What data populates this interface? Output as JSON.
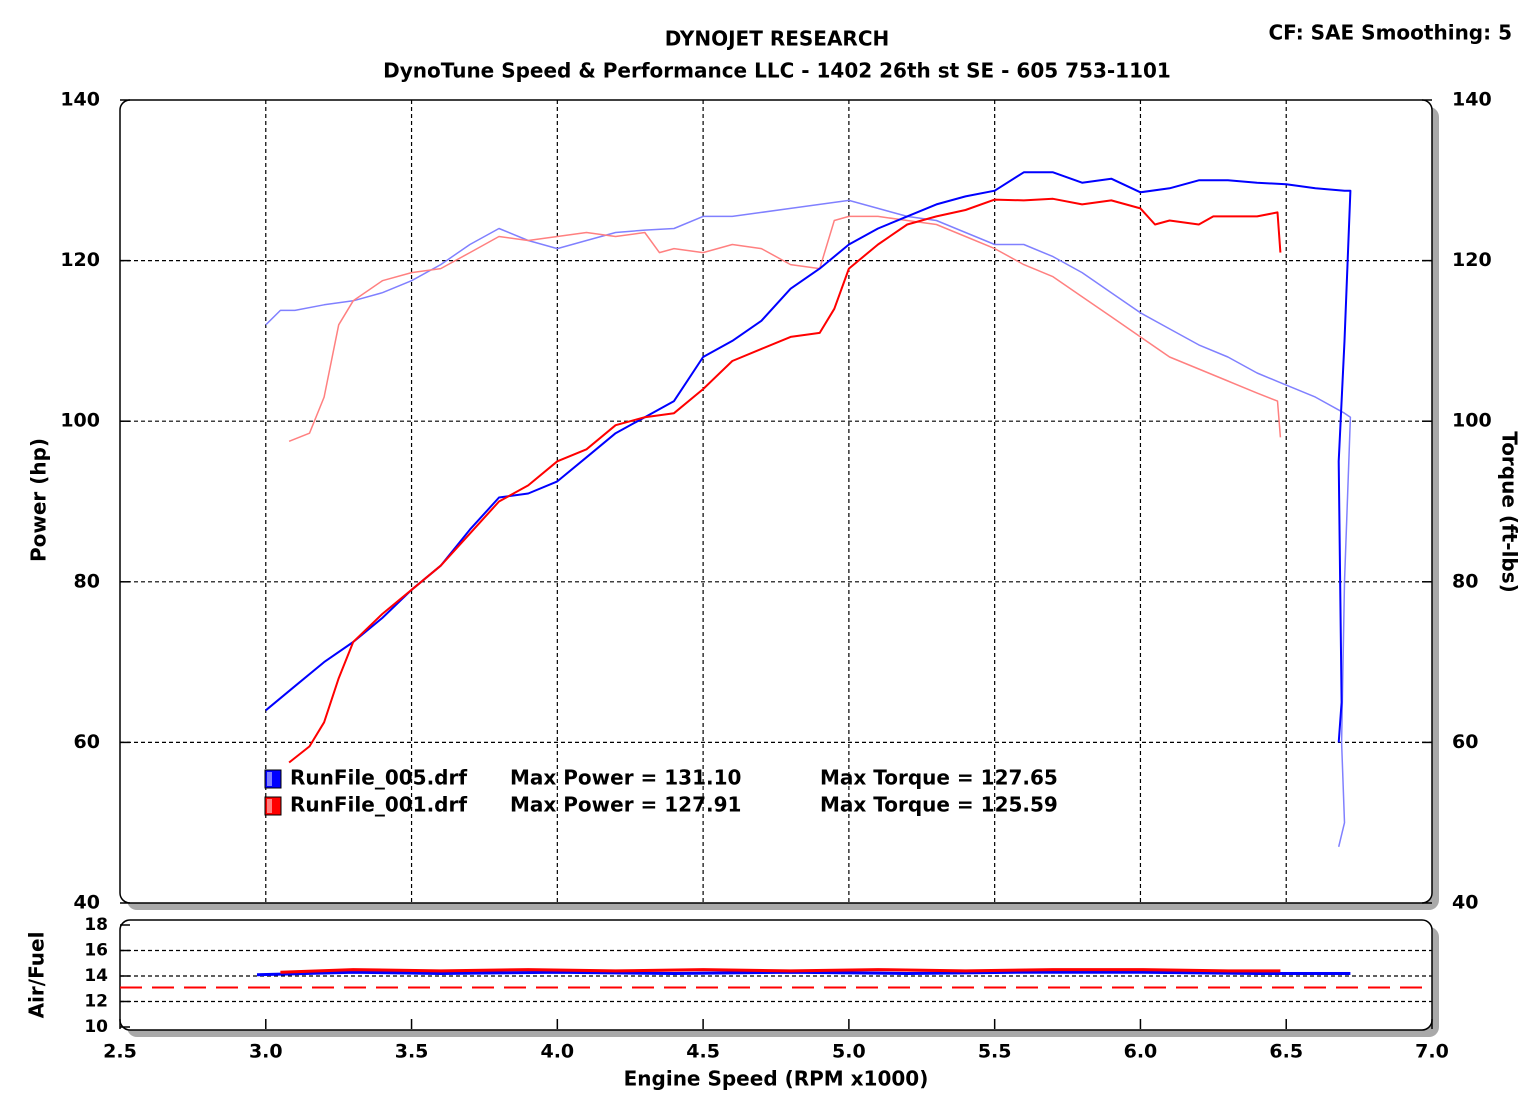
{
  "chart_data": [
    {
      "type": "line",
      "title": "DYNOJET RESEARCH",
      "subtitle": "DynoTune Speed & Performance LLC - 1402 26th st SE - 605 753-1101",
      "note": "CF: SAE  Smoothing: 5",
      "ylabel": "Power (hp)",
      "y2label": "Torque (ft-lbs)",
      "xlim": [
        2.5,
        7.0
      ],
      "xticks": [
        {
          "value": 3.0,
          "label": "3.0"
        },
        3.5,
        {
          "value": 4.0,
          "label": "4.0"
        },
        4.5,
        {
          "value": 5.0,
          "label": "5.0"
        },
        5.5,
        {
          "value": 6.0,
          "label": "6.0"
        },
        6.5
      ],
      "ylim": [
        40,
        140
      ],
      "yticks": [
        40,
        60,
        80,
        100,
        120,
        140
      ],
      "y2lim": [
        40,
        140
      ],
      "y2ticks": [
        40,
        60,
        80,
        100,
        120,
        140
      ],
      "grid": true,
      "legend": [
        {
          "file": "RunFile_005.drf",
          "color": "#0000ff",
          "power": "Max Power = 131.10",
          "torque": "Max Torque = 127.65"
        },
        {
          "file": "RunFile_001.drf",
          "color": "#ff0000",
          "power": "Max Power = 127.91",
          "torque": "Max Torque = 125.59"
        }
      ],
      "series": [
        {
          "color": "#8080ff",
          "width": 1.5,
          "axis": "y2",
          "x": [
            3.0,
            3.05,
            3.1,
            3.2,
            3.3,
            3.4,
            3.5,
            3.6,
            3.7,
            3.8,
            3.9,
            4.0,
            4.1,
            4.2,
            4.3,
            4.4,
            4.5,
            4.6,
            4.7,
            4.8,
            4.9,
            5.0,
            5.1,
            5.2,
            5.3,
            5.4,
            5.5,
            5.6,
            5.7,
            5.8,
            5.9,
            6.0,
            6.1,
            6.2,
            6.3,
            6.4,
            6.5,
            6.6,
            6.7,
            6.72,
            6.7,
            6.69,
            6.7,
            6.68
          ],
          "values": [
            112,
            113.8,
            113.8,
            114.5,
            115,
            116,
            117.5,
            119.5,
            122,
            124,
            122.5,
            121.5,
            122.5,
            123.5,
            123.8,
            124,
            125.5,
            125.5,
            126,
            126.5,
            127,
            127.5,
            126.5,
            125.5,
            125,
            123.5,
            122,
            122,
            120.5,
            118.5,
            116,
            113.5,
            111.5,
            109.5,
            108,
            106,
            104.5,
            103,
            101,
            100.5,
            80,
            60,
            50,
            47
          ]
        },
        {
          "color": "#ff8080",
          "width": 1.5,
          "axis": "y2",
          "x": [
            3.08,
            3.15,
            3.2,
            3.25,
            3.3,
            3.4,
            3.5,
            3.6,
            3.7,
            3.8,
            3.9,
            4.0,
            4.1,
            4.2,
            4.3,
            4.35,
            4.4,
            4.5,
            4.6,
            4.7,
            4.8,
            4.9,
            4.95,
            5.0,
            5.1,
            5.2,
            5.3,
            5.4,
            5.5,
            5.6,
            5.7,
            5.8,
            5.9,
            6.0,
            6.1,
            6.2,
            6.3,
            6.4,
            6.47,
            6.48
          ],
          "values": [
            97.5,
            98.5,
            103,
            112,
            115,
            117.5,
            118.5,
            119,
            121,
            123,
            122.5,
            123,
            123.5,
            123,
            123.5,
            121,
            121.5,
            121,
            122,
            121.5,
            119.5,
            119,
            125,
            125.5,
            125.5,
            125,
            124.5,
            123,
            121.5,
            119.5,
            118,
            115.5,
            113,
            110.5,
            108,
            106.5,
            105,
            103.5,
            102.5,
            98
          ]
        },
        {
          "color": "#0000ff",
          "width": 2,
          "x": [
            3.0,
            3.1,
            3.2,
            3.3,
            3.4,
            3.5,
            3.6,
            3.7,
            3.8,
            3.9,
            4.0,
            4.1,
            4.2,
            4.3,
            4.4,
            4.5,
            4.6,
            4.7,
            4.8,
            4.9,
            5.0,
            5.1,
            5.2,
            5.3,
            5.4,
            5.5,
            5.6,
            5.7,
            5.8,
            5.9,
            6.0,
            6.1,
            6.2,
            6.3,
            6.4,
            6.5,
            6.6,
            6.7,
            6.72,
            6.7,
            6.68,
            6.69,
            6.68
          ],
          "values": [
            64,
            67,
            70,
            72.5,
            75.5,
            79,
            82,
            86.5,
            90.5,
            91,
            92.5,
            95.5,
            98.5,
            100.5,
            102.5,
            108,
            110,
            112.5,
            116.5,
            119,
            122,
            124,
            125.5,
            127,
            128,
            128.7,
            131,
            131,
            129.7,
            130.2,
            128.5,
            129,
            130,
            130,
            129.7,
            129.5,
            129,
            128.7,
            128.7,
            110,
            95,
            65,
            60
          ]
        },
        {
          "color": "#ff0000",
          "width": 2,
          "x": [
            3.08,
            3.15,
            3.2,
            3.25,
            3.3,
            3.4,
            3.5,
            3.6,
            3.7,
            3.8,
            3.9,
            4.0,
            4.1,
            4.2,
            4.3,
            4.4,
            4.5,
            4.6,
            4.7,
            4.8,
            4.9,
            4.95,
            5.0,
            5.1,
            5.2,
            5.3,
            5.4,
            5.5,
            5.6,
            5.7,
            5.8,
            5.9,
            6.0,
            6.05,
            6.1,
            6.2,
            6.25,
            6.3,
            6.4,
            6.47,
            6.48
          ],
          "values": [
            57.5,
            59.5,
            62.5,
            68,
            72.5,
            76,
            79,
            82,
            86,
            90,
            92,
            95,
            96.5,
            99.5,
            100.5,
            101,
            104,
            107.5,
            109,
            110.5,
            111,
            114,
            119,
            122,
            124.5,
            125.5,
            126.3,
            127.6,
            127.5,
            127.7,
            127,
            127.5,
            126.5,
            124.5,
            125,
            124.5,
            125.5,
            125.5,
            125.5,
            126,
            121
          ]
        }
      ]
    },
    {
      "type": "line",
      "ylabel": "Air/Fuel",
      "xlabel": "Engine Speed (RPM x1000)",
      "xlim": [
        2.5,
        7.0
      ],
      "xticks": [
        2.5,
        {
          "value": 3.0,
          "label": "3.0"
        },
        3.5,
        {
          "value": 4.0,
          "label": "4.0"
        },
        4.5,
        {
          "value": 5.0,
          "label": "5.0"
        },
        5.5,
        {
          "value": 6.0,
          "label": "6.0"
        },
        6.5,
        {
          "value": 7.0,
          "label": "7.0"
        }
      ],
      "ylim": [
        10,
        18
      ],
      "yticks": [
        10,
        12,
        14,
        16,
        18
      ],
      "grid": true,
      "reference_lines": [
        {
          "value": 13.1,
          "color": "#ff0000",
          "style": "dashed"
        }
      ],
      "series": [
        {
          "color": "#0000ff",
          "width": 3,
          "x": [
            2.97,
            3.3,
            3.6,
            4.0,
            4.4,
            4.8,
            5.2,
            5.6,
            6.0,
            6.4,
            6.72
          ],
          "values": [
            14.1,
            14.3,
            14.2,
            14.3,
            14.2,
            14.3,
            14.2,
            14.3,
            14.3,
            14.2,
            14.2
          ]
        },
        {
          "color": "#ff0000",
          "width": 3,
          "x": [
            3.05,
            3.3,
            3.6,
            3.9,
            4.2,
            4.5,
            4.8,
            5.1,
            5.4,
            5.7,
            6.0,
            6.3,
            6.48
          ],
          "values": [
            14.3,
            14.5,
            14.4,
            14.5,
            14.4,
            14.5,
            14.4,
            14.5,
            14.4,
            14.5,
            14.5,
            14.4,
            14.4
          ]
        }
      ]
    }
  ]
}
